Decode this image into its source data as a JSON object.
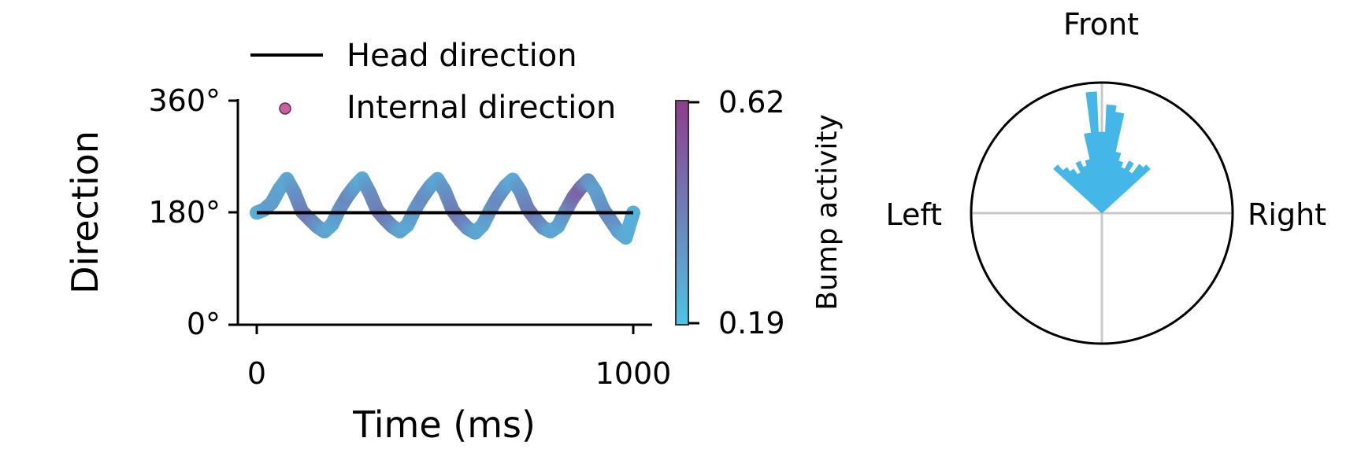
{
  "colors": {
    "head_direction_line": "#000000",
    "colormap_low": "#4dc4e6",
    "colormap_high": "#8e3c8c",
    "polar_bars": "#45b6e8",
    "polar_grid": "#c8c8c8"
  },
  "chart_data": [
    {
      "type": "line",
      "xlabel": "Time (ms)",
      "ylabel": "Direction",
      "xlim": [
        0,
        1000
      ],
      "ylim": [
        0,
        360
      ],
      "xticks": [
        "0",
        "1000"
      ],
      "yticks": [
        "0°",
        "180°",
        "360°"
      ],
      "legend": {
        "placement": "top",
        "entries": [
          "Head direction",
          "Internal direction"
        ]
      },
      "series": [
        {
          "name": "Head direction",
          "x": [
            0,
            1000
          ],
          "y": [
            180,
            180
          ]
        },
        {
          "name": "Internal direction",
          "x": [
            0,
            20,
            40,
            60,
            80,
            100,
            120,
            140,
            160,
            180,
            200,
            220,
            240,
            260,
            280,
            300,
            320,
            340,
            360,
            380,
            400,
            420,
            440,
            460,
            480,
            500,
            520,
            540,
            560,
            580,
            600,
            620,
            640,
            660,
            680,
            700,
            720,
            740,
            760,
            780,
            800,
            820,
            840,
            860,
            880,
            900,
            920,
            940,
            960,
            980,
            1000
          ],
          "y": [
            180,
            185,
            196,
            218,
            234,
            212,
            182,
            170,
            158,
            150,
            161,
            186,
            206,
            222,
            235,
            212,
            184,
            170,
            158,
            150,
            160,
            185,
            205,
            222,
            234,
            214,
            184,
            168,
            155,
            148,
            160,
            184,
            205,
            222,
            233,
            215,
            186,
            170,
            156,
            150,
            158,
            182,
            204,
            220,
            232,
            214,
            186,
            168,
            150,
            140,
            180
          ],
          "bump_activity": [
            0.25,
            0.28,
            0.32,
            0.3,
            0.27,
            0.34,
            0.4,
            0.42,
            0.36,
            0.3,
            0.28,
            0.33,
            0.38,
            0.32,
            0.27,
            0.35,
            0.4,
            0.42,
            0.38,
            0.3,
            0.28,
            0.32,
            0.37,
            0.33,
            0.28,
            0.34,
            0.4,
            0.43,
            0.37,
            0.3,
            0.28,
            0.33,
            0.38,
            0.33,
            0.27,
            0.33,
            0.4,
            0.42,
            0.37,
            0.3,
            0.28,
            0.34,
            0.45,
            0.5,
            0.36,
            0.3,
            0.34,
            0.38,
            0.32,
            0.27,
            0.25
          ]
        }
      ],
      "colorbar": {
        "label": "Bump activity",
        "min": 0.19,
        "max": 0.62,
        "ticks": [
          "0.62",
          "0.19"
        ]
      }
    },
    {
      "type": "bar",
      "subtype": "polar-histogram",
      "labels": {
        "top": "Front",
        "left": "Left",
        "right": "Right"
      },
      "angle_unit": "degrees clockwise from Front",
      "max_radius": 1.0,
      "bars": [
        {
          "angle": -45,
          "value": 0.5
        },
        {
          "angle": -40,
          "value": 0.44
        },
        {
          "angle": -35,
          "value": 0.4
        },
        {
          "angle": -30,
          "value": 0.35
        },
        {
          "angle": -25,
          "value": 0.43
        },
        {
          "angle": -20,
          "value": 0.38
        },
        {
          "angle": -15,
          "value": 0.42
        },
        {
          "angle": -10,
          "value": 0.62
        },
        {
          "angle": -5,
          "value": 0.93
        },
        {
          "angle": 0,
          "value": 0.62
        },
        {
          "angle": 5,
          "value": 0.83
        },
        {
          "angle": 10,
          "value": 0.78
        },
        {
          "angle": 15,
          "value": 0.48
        },
        {
          "angle": 20,
          "value": 0.42
        },
        {
          "angle": 25,
          "value": 0.38
        },
        {
          "angle": 30,
          "value": 0.45
        },
        {
          "angle": 35,
          "value": 0.38
        },
        {
          "angle": 40,
          "value": 0.47
        },
        {
          "angle": 45,
          "value": 0.5
        }
      ]
    }
  ]
}
